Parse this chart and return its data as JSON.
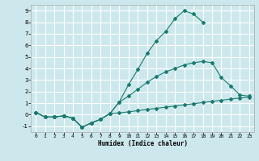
{
  "xlabel": "Humidex (Indice chaleur)",
  "bg_color": "#cce8ec",
  "grid_color": "#ffffff",
  "line_color": "#1a7a6e",
  "xlim": [
    -0.5,
    23.5
  ],
  "ylim": [
    -1.5,
    9.5
  ],
  "xticks": [
    0,
    1,
    2,
    3,
    4,
    5,
    6,
    7,
    8,
    9,
    10,
    11,
    12,
    13,
    14,
    15,
    16,
    17,
    18,
    19,
    20,
    21,
    22,
    23
  ],
  "yticks": [
    -1,
    0,
    1,
    2,
    3,
    4,
    5,
    6,
    7,
    8,
    9
  ],
  "line1_x": [
    0,
    1,
    2,
    3,
    4,
    5,
    6,
    7,
    8,
    9,
    10,
    11,
    12,
    13,
    14,
    15,
    16,
    17,
    18
  ],
  "line1_y": [
    0.2,
    -0.2,
    -0.2,
    -0.1,
    -0.3,
    -1.1,
    -0.7,
    -0.4,
    0.1,
    1.1,
    2.6,
    3.9,
    5.3,
    6.4,
    7.2,
    8.3,
    9.0,
    8.7,
    8.0
  ],
  "line2_x": [
    0,
    1,
    2,
    3,
    4,
    5,
    6,
    7,
    8,
    9,
    10,
    11,
    12,
    13,
    14,
    15,
    16,
    17,
    18,
    19,
    20,
    21,
    22,
    23
  ],
  "line2_y": [
    0.2,
    -0.2,
    -0.2,
    -0.1,
    -0.3,
    -1.1,
    -0.7,
    -0.4,
    0.1,
    1.1,
    1.6,
    2.2,
    2.8,
    3.3,
    3.7,
    4.0,
    4.3,
    4.5,
    4.6,
    4.5,
    3.2,
    2.5,
    1.7,
    1.6
  ],
  "line3_x": [
    0,
    1,
    2,
    3,
    4,
    5,
    6,
    7,
    8,
    9,
    10,
    11,
    12,
    13,
    14,
    15,
    16,
    17,
    18,
    19,
    20,
    21,
    22,
    23
  ],
  "line3_y": [
    0.2,
    -0.2,
    -0.2,
    -0.1,
    -0.3,
    -1.1,
    -0.7,
    -0.4,
    0.1,
    0.15,
    0.25,
    0.35,
    0.45,
    0.55,
    0.65,
    0.75,
    0.85,
    0.95,
    1.05,
    1.15,
    1.25,
    1.35,
    1.45,
    1.5
  ]
}
